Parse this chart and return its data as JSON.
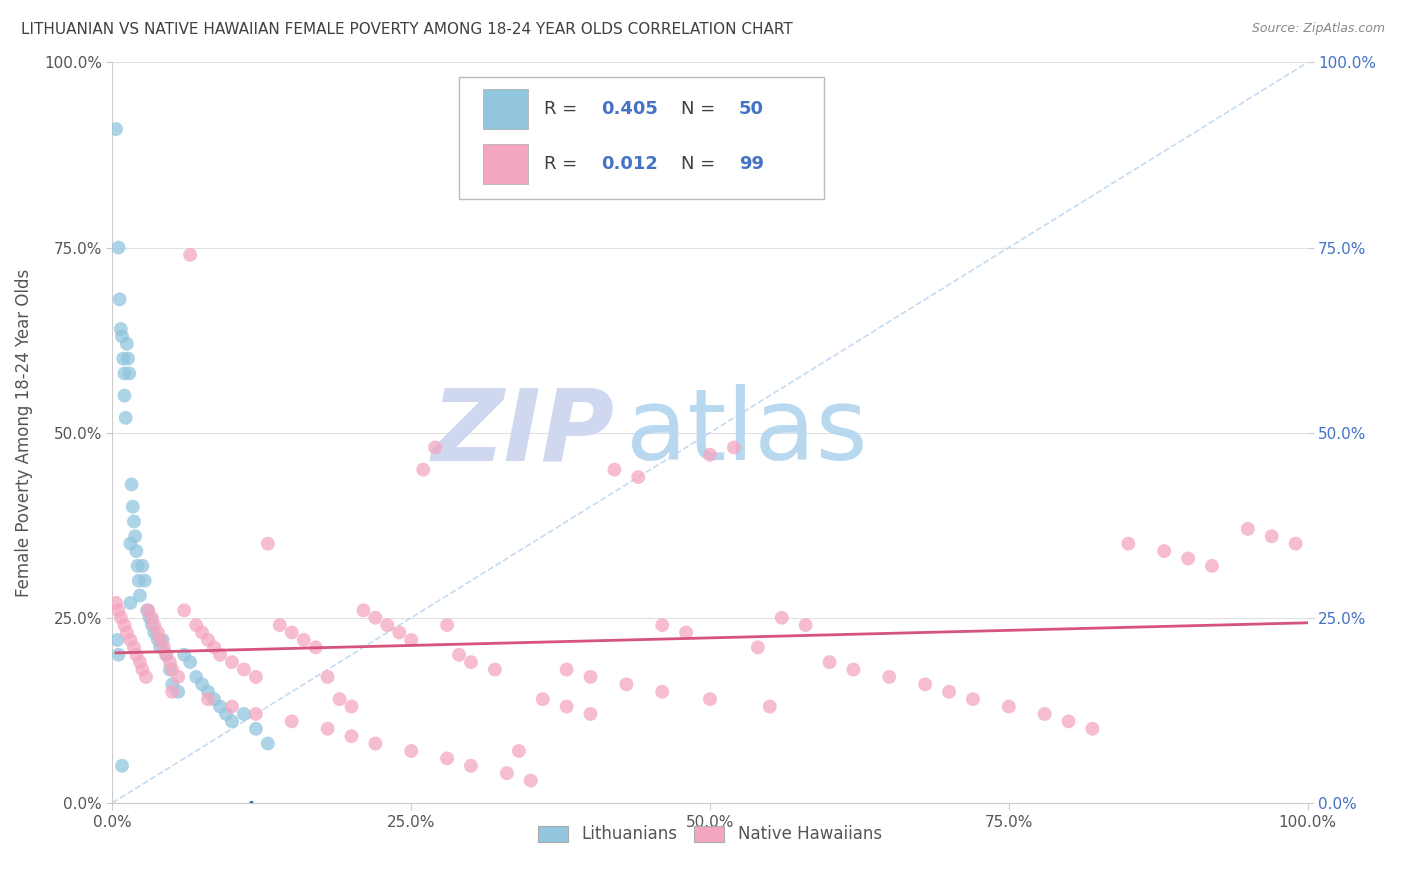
{
  "title": "LITHUANIAN VS NATIVE HAWAIIAN FEMALE POVERTY AMONG 18-24 YEAR OLDS CORRELATION CHART",
  "source": "Source: ZipAtlas.com",
  "ylabel": "Female Poverty Among 18-24 Year Olds",
  "xlim": [
    0,
    100
  ],
  "ylim": [
    0,
    100
  ],
  "xticks": [
    0,
    25,
    50,
    75,
    100
  ],
  "yticks": [
    0,
    25,
    50,
    75,
    100
  ],
  "xtick_labels": [
    "0.0%",
    "25.0%",
    "50.0%",
    "75.0%",
    "100.0%"
  ],
  "ytick_labels": [
    "0.0%",
    "25.0%",
    "50.0%",
    "75.0%",
    "100.0%"
  ],
  "legend_labels": [
    "Lithuanians",
    "Native Hawaiians"
  ],
  "R_lith": 0.405,
  "N_lith": 50,
  "R_nh": 0.012,
  "N_nh": 99,
  "blue_color": "#92C5DE",
  "pink_color": "#F4A6C0",
  "blue_line_color": "#2166AC",
  "pink_line_color": "#D6537A",
  "tick_color_right": "#4472C4",
  "tick_color_left": "#555555",
  "grid_color": "#E0E0E0",
  "title_color": "#404040",
  "source_color": "#888888",
  "legend_text_dark": "#404040",
  "legend_R_N_color": "#4472C4",
  "watermark_zip_color": "#D0D8F0",
  "watermark_atlas_color": "#B8D8F0",
  "lith_x": [
    0.3,
    0.4,
    0.5,
    0.5,
    0.6,
    0.7,
    0.8,
    0.9,
    1.0,
    1.0,
    1.1,
    1.2,
    1.3,
    1.4,
    1.5,
    1.5,
    1.6,
    1.7,
    1.8,
    1.9,
    2.0,
    2.1,
    2.2,
    2.3,
    2.5,
    2.7,
    2.9,
    3.1,
    3.3,
    3.5,
    3.8,
    4.0,
    4.2,
    4.5,
    4.8,
    5.0,
    5.5,
    6.0,
    6.5,
    7.0,
    7.5,
    8.0,
    8.5,
    9.0,
    9.5,
    10.0,
    11.0,
    12.0,
    13.0,
    0.8
  ],
  "lith_y": [
    91.0,
    22.0,
    20.0,
    75.0,
    68.0,
    64.0,
    63.0,
    60.0,
    58.0,
    55.0,
    52.0,
    62.0,
    60.0,
    58.0,
    27.0,
    35.0,
    43.0,
    40.0,
    38.0,
    36.0,
    34.0,
    32.0,
    30.0,
    28.0,
    32.0,
    30.0,
    26.0,
    25.0,
    24.0,
    23.0,
    22.0,
    21.0,
    22.0,
    20.0,
    18.0,
    16.0,
    15.0,
    20.0,
    19.0,
    17.0,
    16.0,
    15.0,
    14.0,
    13.0,
    12.0,
    11.0,
    12.0,
    10.0,
    8.0,
    5.0
  ],
  "nh_x": [
    0.3,
    0.5,
    0.7,
    1.0,
    1.2,
    1.5,
    1.8,
    2.0,
    2.3,
    2.5,
    2.8,
    3.0,
    3.3,
    3.5,
    3.8,
    4.0,
    4.3,
    4.5,
    4.8,
    5.0,
    5.5,
    6.0,
    6.5,
    7.0,
    7.5,
    8.0,
    8.5,
    9.0,
    10.0,
    11.0,
    12.0,
    13.0,
    14.0,
    15.0,
    16.0,
    17.0,
    18.0,
    19.0,
    20.0,
    21.0,
    22.0,
    23.0,
    24.0,
    25.0,
    26.0,
    27.0,
    28.0,
    29.0,
    30.0,
    32.0,
    34.0,
    36.0,
    38.0,
    40.0,
    42.0,
    44.0,
    46.0,
    48.0,
    50.0,
    52.0,
    54.0,
    56.0,
    58.0,
    60.0,
    62.0,
    65.0,
    68.0,
    70.0,
    72.0,
    75.0,
    78.0,
    80.0,
    82.0,
    85.0,
    88.0,
    90.0,
    92.0,
    95.0,
    97.0,
    99.0,
    5.0,
    8.0,
    10.0,
    12.0,
    15.0,
    18.0,
    20.0,
    22.0,
    25.0,
    28.0,
    30.0,
    33.0,
    35.0,
    38.0,
    40.0,
    43.0,
    46.0,
    50.0,
    55.0
  ],
  "nh_y": [
    27.0,
    26.0,
    25.0,
    24.0,
    23.0,
    22.0,
    21.0,
    20.0,
    19.0,
    18.0,
    17.0,
    26.0,
    25.0,
    24.0,
    23.0,
    22.0,
    21.0,
    20.0,
    19.0,
    18.0,
    17.0,
    26.0,
    74.0,
    24.0,
    23.0,
    22.0,
    21.0,
    20.0,
    19.0,
    18.0,
    17.0,
    35.0,
    24.0,
    23.0,
    22.0,
    21.0,
    17.0,
    14.0,
    13.0,
    26.0,
    25.0,
    24.0,
    23.0,
    22.0,
    45.0,
    48.0,
    24.0,
    20.0,
    19.0,
    18.0,
    7.0,
    14.0,
    13.0,
    12.0,
    45.0,
    44.0,
    24.0,
    23.0,
    47.0,
    48.0,
    21.0,
    25.0,
    24.0,
    19.0,
    18.0,
    17.0,
    16.0,
    15.0,
    14.0,
    13.0,
    12.0,
    11.0,
    10.0,
    35.0,
    34.0,
    33.0,
    32.0,
    37.0,
    36.0,
    35.0,
    15.0,
    14.0,
    13.0,
    12.0,
    11.0,
    10.0,
    9.0,
    8.0,
    7.0,
    6.0,
    5.0,
    4.0,
    3.0,
    18.0,
    17.0,
    16.0,
    15.0,
    14.0,
    13.0
  ]
}
